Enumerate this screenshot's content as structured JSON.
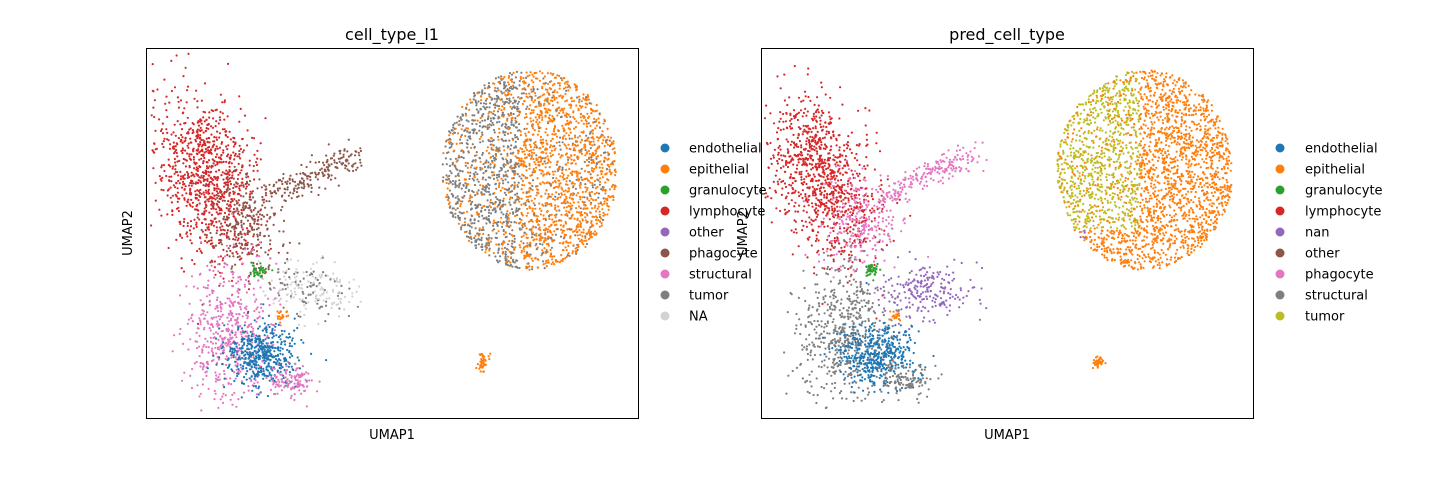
{
  "colors": {
    "blue": "#1f77b4",
    "orange": "#ff7f0e",
    "green": "#2ca02c",
    "red": "#d62728",
    "purple": "#9467bd",
    "brown": "#8c564b",
    "pink": "#e377c2",
    "gray": "#7f7f7f",
    "olive": "#bcbd22",
    "lightgray": "#d3d3d3"
  },
  "chart_data": [
    {
      "type": "scatter",
      "title": "cell_type_l1",
      "xlabel": "UMAP1",
      "ylabel": "UMAP2",
      "ticks": "none",
      "grid": false,
      "legend_position": "right-outside",
      "legend": [
        {
          "label": "endothelial",
          "color": "#1f77b4"
        },
        {
          "label": "epithelial",
          "color": "#ff7f0e"
        },
        {
          "label": "granulocyte",
          "color": "#2ca02c"
        },
        {
          "label": "lymphocyte",
          "color": "#d62728"
        },
        {
          "label": "other",
          "color": "#9467bd"
        },
        {
          "label": "phagocyte",
          "color": "#8c564b"
        },
        {
          "label": "structural",
          "color": "#e377c2"
        },
        {
          "label": "tumor",
          "color": "#7f7f7f"
        },
        {
          "label": "NA",
          "color": "#d3d3d3"
        }
      ]
    },
    {
      "type": "scatter",
      "title": "pred_cell_type",
      "xlabel": "UMAP1",
      "ylabel": "UMAP2",
      "ticks": "none",
      "grid": false,
      "legend_position": "right-outside",
      "legend": [
        {
          "label": "endothelial",
          "color": "#1f77b4"
        },
        {
          "label": "epithelial",
          "color": "#ff7f0e"
        },
        {
          "label": "granulocyte",
          "color": "#2ca02c"
        },
        {
          "label": "lymphocyte",
          "color": "#d62728"
        },
        {
          "label": "nan",
          "color": "#9467bd"
        },
        {
          "label": "other",
          "color": "#8c564b"
        },
        {
          "label": "phagocyte",
          "color": "#e377c2"
        },
        {
          "label": "structural",
          "color": "#7f7f7f"
        },
        {
          "label": "tumor",
          "color": "#bcbd22"
        }
      ]
    }
  ]
}
